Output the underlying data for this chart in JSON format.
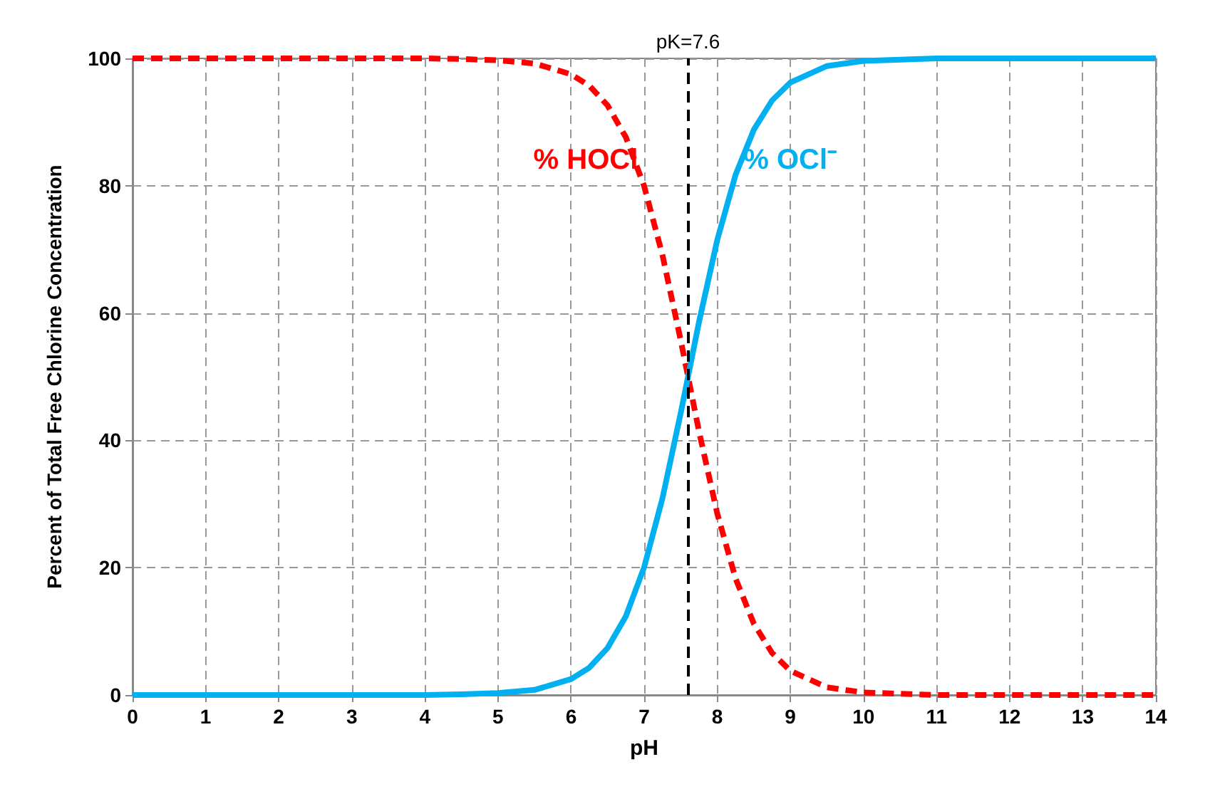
{
  "chart_data": {
    "type": "line",
    "xlabel": "pH",
    "ylabel": "Percent of Total Free Chlorine Concentration",
    "x": [
      0,
      1,
      2,
      3,
      4,
      4.5,
      5,
      5.5,
      6,
      6.25,
      6.5,
      6.75,
      7,
      7.25,
      7.5,
      7.6,
      7.75,
      8,
      8.25,
      8.5,
      8.75,
      9,
      9.5,
      10,
      11,
      12,
      13,
      14
    ],
    "series": [
      {
        "name": "% HOCl",
        "color": "#ff0000",
        "line_style": "dashed",
        "values": [
          100,
          100,
          100,
          100,
          100,
          99.9,
          99.7,
          99.2,
          97.5,
          95.7,
          92.6,
          87.6,
          79.9,
          69.1,
          55.7,
          50,
          41.4,
          28.5,
          18.3,
          11.2,
          6.6,
          3.8,
          1.2,
          0.4,
          0,
          0,
          0,
          0
        ]
      },
      {
        "name": "% OCl⁻",
        "color": "#00b0f0",
        "line_style": "solid",
        "values": [
          0,
          0,
          0,
          0,
          0,
          0.1,
          0.3,
          0.8,
          2.5,
          4.3,
          7.4,
          12.4,
          20.1,
          30.9,
          44.3,
          50,
          58.6,
          71.5,
          81.7,
          88.8,
          93.4,
          96.2,
          98.8,
          99.6,
          100,
          100,
          100,
          100
        ]
      }
    ],
    "xlim": [
      0,
      14
    ],
    "xticks": [
      0,
      1,
      2,
      3,
      4,
      5,
      6,
      7,
      8,
      9,
      10,
      11,
      12,
      13,
      14
    ],
    "ylim": [
      0,
      100
    ],
    "yticks": [
      0,
      20,
      40,
      60,
      80,
      100
    ],
    "ref_lines": [
      {
        "axis": "x",
        "value": 7.6,
        "label": "pK=7.6",
        "color": "#000000",
        "line_style": "dashed"
      }
    ],
    "grid": true,
    "legend": false,
    "marker": "none"
  }
}
